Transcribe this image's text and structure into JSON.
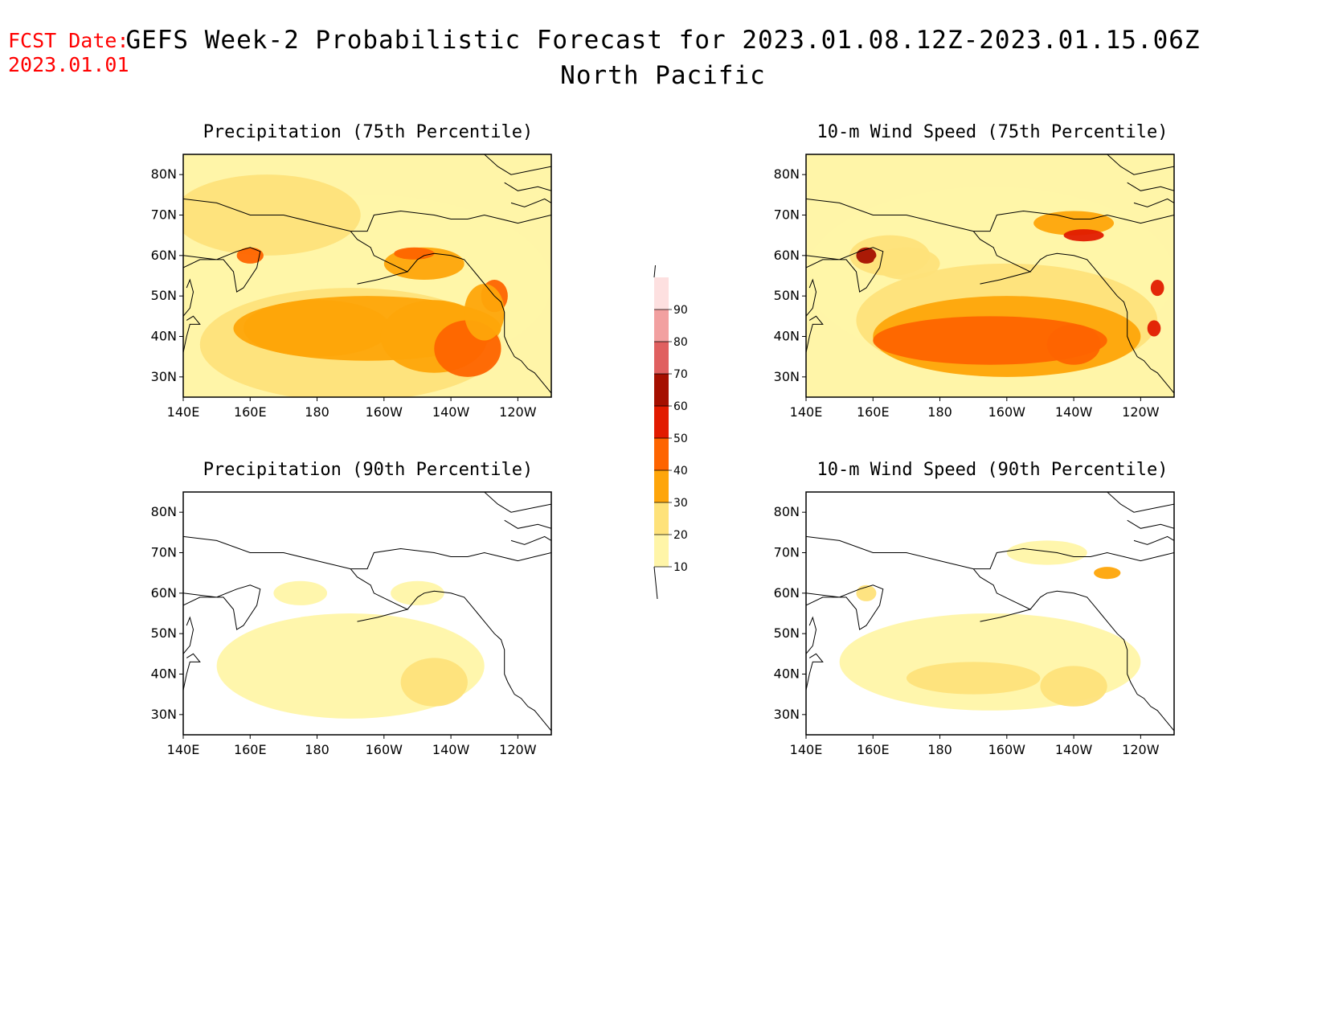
{
  "fcst": {
    "line1": "FCST Date:",
    "line2": "2023.01.01"
  },
  "title": {
    "main": "GEFS Week-2 Probabilistic Forecast for 2023.01.08.12Z-2023.01.15.06Z",
    "region": "North Pacific"
  },
  "panels": [
    {
      "title": "Precipitation (75th Percentile)"
    },
    {
      "title": "10-m Wind Speed (75th Percentile)"
    },
    {
      "title": "Precipitation (90th Percentile)"
    },
    {
      "title": "10-m Wind Speed (90th Percentile)"
    }
  ],
  "axes": {
    "lat_labels": [
      "80N",
      "70N",
      "60N",
      "50N",
      "40N",
      "30N"
    ],
    "lon_labels": [
      "140E",
      "160E",
      "180",
      "160W",
      "140W",
      "120W"
    ]
  },
  "colorbar": {
    "levels": [
      "10",
      "20",
      "30",
      "40",
      "50",
      "60",
      "70",
      "80",
      "90"
    ],
    "colors": [
      "#fff5a8",
      "#fee27a",
      "#fea50a",
      "#fe6400",
      "#e21b00",
      "#a50f00",
      "#e06060",
      "#f2a0a0",
      "#fde0e0"
    ]
  }
}
